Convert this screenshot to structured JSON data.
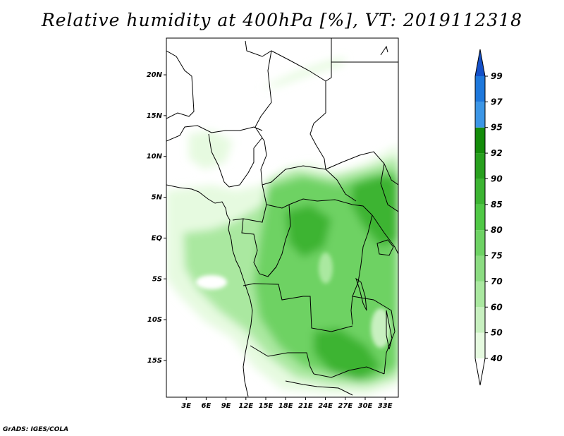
{
  "title": "Relative humidity at 400hPa [%], VT: 2019112318",
  "credit": "GrADS: IGES/COLA",
  "map": {
    "lat_range": [
      -19.5,
      24.5
    ],
    "lon_range": [
      0,
      35
    ],
    "lat_ticks": [
      {
        "value": 20,
        "label": "20N"
      },
      {
        "value": 15,
        "label": "15N"
      },
      {
        "value": 10,
        "label": "10N"
      },
      {
        "value": 5,
        "label": "5N"
      },
      {
        "value": 0,
        "label": "EQ"
      },
      {
        "value": -5,
        "label": "5S"
      },
      {
        "value": -10,
        "label": "10S"
      },
      {
        "value": -15,
        "label": "15S"
      }
    ],
    "lon_ticks": [
      {
        "value": 3,
        "label": "3E"
      },
      {
        "value": 6,
        "label": "6E"
      },
      {
        "value": 9,
        "label": "9E"
      },
      {
        "value": 12,
        "label": "12E"
      },
      {
        "value": 15,
        "label": "15E"
      },
      {
        "value": 18,
        "label": "18E"
      },
      {
        "value": 21,
        "label": "21E"
      },
      {
        "value": 24,
        "label": "24E"
      },
      {
        "value": 27,
        "label": "27E"
      },
      {
        "value": 30,
        "label": "30E"
      },
      {
        "value": 33,
        "label": "33E"
      }
    ]
  },
  "colorbar": {
    "levels": [
      "40",
      "50",
      "60",
      "70",
      "75",
      "80",
      "85",
      "90",
      "92",
      "95",
      "97",
      "99"
    ],
    "colors": [
      "#e6fae0",
      "#c8f0c0",
      "#aae8a0",
      "#8cdc82",
      "#6ed264",
      "#50c846",
      "#3cb432",
      "#28a01e",
      "#148c0a",
      "#3c96e6",
      "#1e78dc",
      "#1450c8"
    ],
    "min_color": "#ffffff",
    "max_color": "#1450c8"
  },
  "colors": {
    "background": "#ffffff",
    "coastline": "#000000"
  }
}
